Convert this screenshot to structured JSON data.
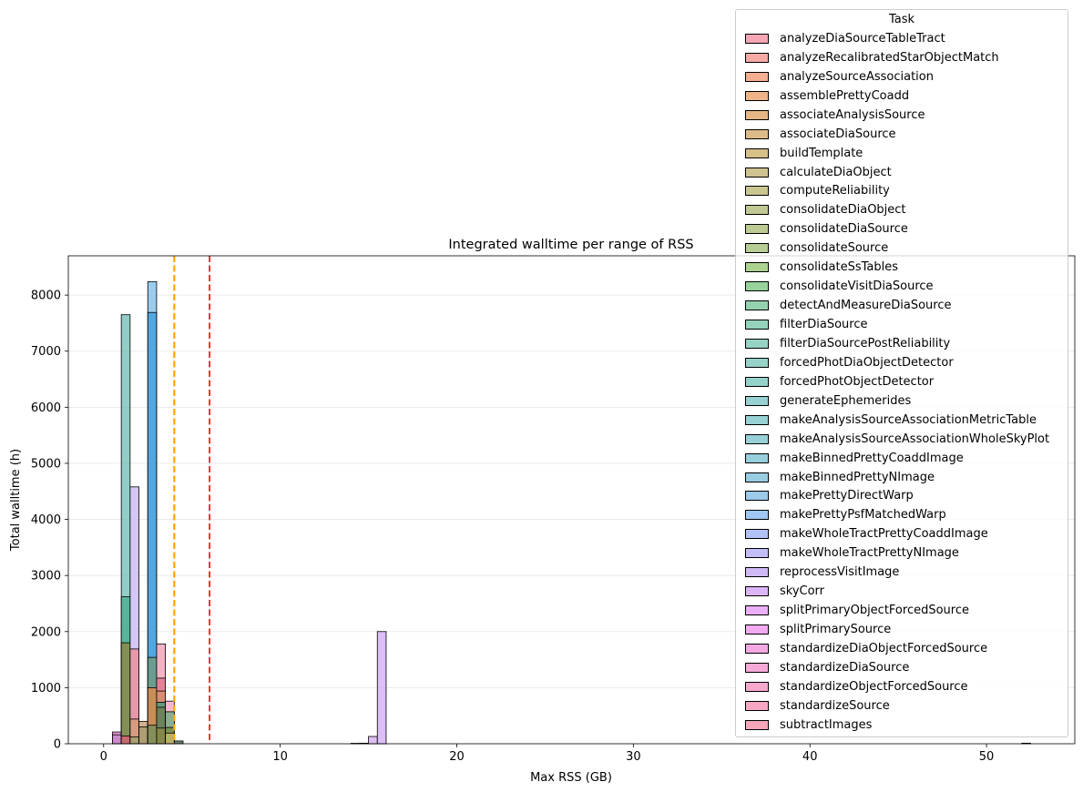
{
  "chart_data": {
    "type": "histogram",
    "title": "Integrated walltime per range of RSS",
    "xlabel": "Max RSS (GB)",
    "ylabel": "Total walltime (h)",
    "xlim": [
      -2,
      55
    ],
    "ylim": [
      0,
      8700
    ],
    "xticks": [
      0,
      10,
      20,
      30,
      40,
      50
    ],
    "yticks": [
      0,
      1000,
      2000,
      3000,
      4000,
      5000,
      6000,
      7000,
      8000
    ],
    "grid": "y",
    "vertical_lines": [
      {
        "x": 4.0,
        "color": "#ffa500",
        "style": "dashed"
      },
      {
        "x": 6.0,
        "color": "#ff0000",
        "style": "dashed"
      }
    ],
    "legend": {
      "title": "Task",
      "location": "upper right"
    },
    "series": [
      {
        "name": "analyzeDiaSourceTableTract",
        "color": "#f7a6b6"
      },
      {
        "name": "analyzeRecalibratedStarObjectMatch",
        "color": "#f7aaa6"
      },
      {
        "name": "analyzeSourceAssociation",
        "color": "#f4ae92"
      },
      {
        "name": "assemblePrettyCoadd",
        "color": "#efb388"
      },
      {
        "name": "associateAnalysisSource",
        "color": "#e6b784"
      },
      {
        "name": "associateDiaSource",
        "color": "#ddbb88"
      },
      {
        "name": "buildTemplate",
        "color": "#d7bf88"
      },
      {
        "name": "calculateDiaObject",
        "color": "#d1c391"
      },
      {
        "name": "computeReliability",
        "color": "#c9c690"
      },
      {
        "name": "consolidateDiaObject",
        "color": "#c2c893"
      },
      {
        "name": "consolidateDiaSource",
        "color": "#bccb93"
      },
      {
        "name": "consolidateSource",
        "color": "#b6ce96"
      },
      {
        "name": "consolidateSsTables",
        "color": "#acd290"
      },
      {
        "name": "consolidateVisitDiaSource",
        "color": "#96d49c"
      },
      {
        "name": "detectAndMeasureDiaSource",
        "color": "#95d3b0"
      },
      {
        "name": "filterDiaSource",
        "color": "#96d3bd"
      },
      {
        "name": "filterDiaSourcePostReliability",
        "color": "#96d3c3"
      },
      {
        "name": "forcedPhotDiaObjectDetector",
        "color": "#96d2c8"
      },
      {
        "name": "forcedPhotObjectDetector",
        "color": "#96d2cc"
      },
      {
        "name": "generateEphemerides",
        "color": "#97d1d0"
      },
      {
        "name": "makeAnalysisSourceAssociationMetricTable",
        "color": "#98d1d4"
      },
      {
        "name": "makeAnalysisSourceAssociationWholeSkyPlot",
        "color": "#98d0d8"
      },
      {
        "name": "makeBinnedPrettyCoaddImage",
        "color": "#98cfdd"
      },
      {
        "name": "makeBinnedPrettyNImage",
        "color": "#99cde2"
      },
      {
        "name": "makePrettyDirectWarp",
        "color": "#9ccae9"
      },
      {
        "name": "makePrettyPsfMatchedWarp",
        "color": "#9fc7f4"
      },
      {
        "name": "makeWholeTractPrettyCoaddImage",
        "color": "#b2c2f6"
      },
      {
        "name": "makeWholeTractPrettyNImage",
        "color": "#c3bef7"
      },
      {
        "name": "reprocessVisitImage",
        "color": "#cfbaf7"
      },
      {
        "name": "skyCorr",
        "color": "#dcb5f7"
      },
      {
        "name": "splitPrimaryObjectForcedSource",
        "color": "#eaaff7"
      },
      {
        "name": "splitPrimarySource",
        "color": "#f3aaf1"
      },
      {
        "name": "standardizeDiaObjectForcedSource",
        "color": "#f5a9e3"
      },
      {
        "name": "standardizeDiaSource",
        "color": "#f6a9d7"
      },
      {
        "name": "standardizeObjectForcedSource",
        "color": "#f7a8cd"
      },
      {
        "name": "standardizeSource",
        "color": "#f7a7c3"
      },
      {
        "name": "subtractImages",
        "color": "#f7a6ba"
      }
    ],
    "bars": [
      {
        "x0": 0.5,
        "x1": 1.0,
        "y": 210,
        "color": "#e87fd0"
      },
      {
        "x0": 0.5,
        "x1": 1.0,
        "y": 160,
        "color": "#c987c8"
      },
      {
        "x0": 1.0,
        "x1": 1.5,
        "y": 7650,
        "color": "#7fc4bd"
      },
      {
        "x0": 1.0,
        "x1": 1.5,
        "y": 2620,
        "color": "#4daf94"
      },
      {
        "x0": 1.0,
        "x1": 1.5,
        "y": 1800,
        "color": "#8a8a4a"
      },
      {
        "x0": 1.0,
        "x1": 1.5,
        "y": 140,
        "color": "#d4646e"
      },
      {
        "x0": 1.5,
        "x1": 2.0,
        "y": 4580,
        "color": "#cdbdf5"
      },
      {
        "x0": 1.5,
        "x1": 2.0,
        "y": 1690,
        "color": "#e8909e"
      },
      {
        "x0": 1.5,
        "x1": 2.0,
        "y": 440,
        "color": "#d59a7a"
      },
      {
        "x0": 1.5,
        "x1": 2.0,
        "y": 120,
        "color": "#a0a070"
      },
      {
        "x0": 2.0,
        "x1": 2.5,
        "y": 400,
        "color": "#c8a67e"
      },
      {
        "x0": 2.0,
        "x1": 2.5,
        "y": 300,
        "color": "#a89a6e"
      },
      {
        "x0": 2.5,
        "x1": 3.0,
        "y": 8240,
        "color": "#8bc3ea"
      },
      {
        "x0": 2.5,
        "x1": 3.0,
        "y": 7690,
        "color": "#45a0dd"
      },
      {
        "x0": 2.5,
        "x1": 3.0,
        "y": 1540,
        "color": "#6f9b80"
      },
      {
        "x0": 2.5,
        "x1": 3.0,
        "y": 1000,
        "color": "#d98b4f"
      },
      {
        "x0": 2.5,
        "x1": 3.0,
        "y": 330,
        "color": "#7a8f5a"
      },
      {
        "x0": 3.0,
        "x1": 3.5,
        "y": 1780,
        "color": "#f2a4bb"
      },
      {
        "x0": 3.0,
        "x1": 3.5,
        "y": 1170,
        "color": "#e17a8f"
      },
      {
        "x0": 3.0,
        "x1": 3.5,
        "y": 940,
        "color": "#d88f6a"
      },
      {
        "x0": 3.0,
        "x1": 3.5,
        "y": 740,
        "color": "#4e9a80"
      },
      {
        "x0": 3.0,
        "x1": 3.5,
        "y": 650,
        "color": "#6e7f55"
      },
      {
        "x0": 3.0,
        "x1": 3.5,
        "y": 280,
        "color": "#8a8a40"
      },
      {
        "x0": 3.5,
        "x1": 4.0,
        "y": 760,
        "color": "#f4a9c9"
      },
      {
        "x0": 3.5,
        "x1": 4.0,
        "y": 570,
        "color": "#74ad8a"
      },
      {
        "x0": 3.5,
        "x1": 4.0,
        "y": 290,
        "color": "#7a8a4e"
      },
      {
        "x0": 3.5,
        "x1": 4.0,
        "y": 190,
        "color": "#c6b56a"
      },
      {
        "x0": 4.0,
        "x1": 4.5,
        "y": 50,
        "color": "#55705a"
      },
      {
        "x0": 14.0,
        "x1": 14.5,
        "y": 8,
        "color": "#888888"
      },
      {
        "x0": 14.5,
        "x1": 15.0,
        "y": 10,
        "color": "#888888"
      },
      {
        "x0": 15.0,
        "x1": 15.5,
        "y": 130,
        "color": "#d8b3f4"
      },
      {
        "x0": 15.5,
        "x1": 16.0,
        "y": 2000,
        "color": "#d8b3f4"
      },
      {
        "x0": 52.0,
        "x1": 52.5,
        "y": 10,
        "color": "#888888"
      }
    ]
  }
}
